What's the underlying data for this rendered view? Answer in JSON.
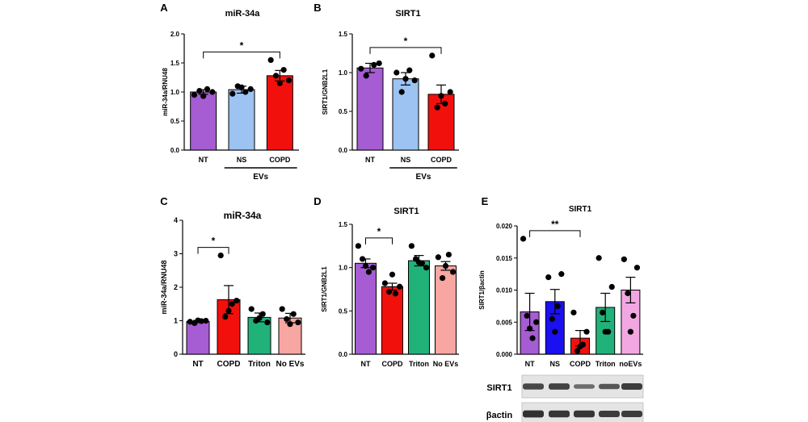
{
  "colors": {
    "purple": "#a65cd3",
    "blue": "#9cc3f2",
    "red": "#f2100d",
    "green": "#21b27a",
    "salmon": "#f7a6a2",
    "royal_blue": "#1a10f0",
    "pink": "#f2a7e2"
  },
  "chart_data": [
    {
      "panel_letter": "A",
      "type": "bar",
      "title": "miR-34a",
      "ylabel": "miR-34a/RNU48",
      "xlabel": "",
      "ylim": [
        0,
        2.0
      ],
      "yticks": [
        "0.0",
        "0.5",
        "1.0",
        "1.5",
        "2.0"
      ],
      "categories": [
        "NT",
        "NS",
        "COPD"
      ],
      "values": [
        1.0,
        1.04,
        1.28
      ],
      "sem": [
        0.04,
        0.06,
        0.09
      ],
      "bar_colors": [
        "purple",
        "blue",
        "red"
      ],
      "points": [
        [
          0.95,
          1.0,
          1.02,
          1.05,
          0.93
        ],
        [
          0.97,
          1.05,
          1.1,
          1.0,
          1.08
        ],
        [
          1.55,
          1.2,
          1.28,
          1.38,
          1.15
        ]
      ],
      "group_label": "EVs",
      "significance": [
        {
          "from": 0,
          "to": 2,
          "label": "*"
        }
      ]
    },
    {
      "panel_letter": "B",
      "type": "bar",
      "title": "SIRT1",
      "ylabel": "SIRT1/GNB2L1",
      "xlabel": "",
      "ylim": [
        0,
        1.5
      ],
      "yticks": [
        "0.0",
        "0.5",
        "1.0",
        "1.5"
      ],
      "categories": [
        "NT",
        "NS",
        "COPD"
      ],
      "values": [
        1.06,
        0.92,
        0.72
      ],
      "sem": [
        0.06,
        0.08,
        0.12
      ],
      "bar_colors": [
        "purple",
        "blue",
        "red"
      ],
      "points": [
        [
          1.05,
          1.12,
          0.96,
          1.1
        ],
        [
          1.0,
          0.9,
          0.75,
          1.03,
          0.92
        ],
        [
          1.22,
          0.75,
          0.55,
          0.6,
          0.7
        ]
      ],
      "group_label": "EVs",
      "significance": [
        {
          "from": 0,
          "to": 2,
          "label": "*"
        }
      ]
    },
    {
      "panel_letter": "C",
      "type": "bar",
      "title": "miR-34a",
      "ylabel": "miR-34a/RNU48",
      "xlabel": "",
      "ylim": [
        0,
        4
      ],
      "yticks": [
        "0",
        "1",
        "2",
        "3",
        "4"
      ],
      "categories": [
        "NT",
        "COPD",
        "Triton",
        "No EVs"
      ],
      "values": [
        0.98,
        1.63,
        1.1,
        1.08
      ],
      "sem": [
        0.03,
        0.42,
        0.13,
        0.14
      ],
      "bar_colors": [
        "purple",
        "red",
        "green",
        "salmon"
      ],
      "points": [
        [
          0.97,
          1.0,
          0.93,
          0.99,
          1.01
        ],
        [
          2.95,
          1.6,
          1.12,
          1.5,
          1.3
        ],
        [
          1.35,
          0.95,
          1.0,
          1.2,
          1.08
        ],
        [
          1.35,
          0.95,
          1.05,
          1.2,
          0.9
        ]
      ],
      "significance": [
        {
          "from": 0,
          "to": 1,
          "label": "*"
        }
      ]
    },
    {
      "panel_letter": "D",
      "type": "bar",
      "title": "SIRT1",
      "ylabel": "SIRT1/GNB2L1",
      "xlabel": "",
      "ylim": [
        0,
        1.5
      ],
      "yticks": [
        "0.0",
        "0.5",
        "1.0",
        "1.5"
      ],
      "categories": [
        "NT",
        "COPD",
        "Triton",
        "No EVs"
      ],
      "values": [
        1.05,
        0.78,
        1.08,
        1.02
      ],
      "sem": [
        0.05,
        0.04,
        0.06,
        0.05
      ],
      "bar_colors": [
        "purple",
        "red",
        "green",
        "salmon"
      ],
      "points": [
        [
          1.25,
          1.0,
          1.1,
          0.95,
          1.02
        ],
        [
          0.82,
          0.78,
          0.72,
          0.7,
          0.92
        ],
        [
          1.25,
          1.0,
          1.1,
          1.05,
          1.06
        ],
        [
          1.12,
          0.95,
          0.88,
          1.15,
          1.02
        ]
      ],
      "significance": [
        {
          "from": 0,
          "to": 1,
          "label": "*"
        }
      ]
    },
    {
      "panel_letter": "E",
      "type": "bar",
      "title": "SIRT1",
      "ylabel": "SIRT1/βactin",
      "xlabel": "",
      "ylim": [
        0,
        0.02
      ],
      "yticks": [
        "0.000",
        "0.005",
        "0.010",
        "0.015",
        "0.020"
      ],
      "categories": [
        "NT",
        "NS",
        "COPD",
        "Triton",
        "noEVs"
      ],
      "values": [
        0.0066,
        0.0082,
        0.0025,
        0.0073,
        0.01
      ],
      "sem": [
        0.0029,
        0.0019,
        0.0012,
        0.0022,
        0.002
      ],
      "bar_colors": [
        "purple",
        "royal_blue",
        "red",
        "green",
        "pink"
      ],
      "points": [
        [
          0.018,
          0.005,
          0.006,
          0.0025,
          0.004
        ],
        [
          0.012,
          0.0125,
          0.0055,
          0.0075,
          0.0035
        ],
        [
          0.0065,
          0.0035,
          0.0005,
          0.0015,
          0.0012
        ],
        [
          0.015,
          0.0105,
          0.0065,
          0.0035,
          0.0035
        ],
        [
          0.0148,
          0.0135,
          0.0095,
          0.006,
          0.0035
        ]
      ],
      "significance": [
        {
          "from": 0,
          "to": 2,
          "label": "**"
        }
      ]
    }
  ],
  "blot": {
    "labels": [
      "SIRT1",
      "βactin"
    ],
    "band_intensity": [
      [
        0.75,
        0.8,
        0.4,
        0.6,
        0.85
      ],
      [
        0.95,
        0.9,
        0.9,
        0.85,
        0.85
      ]
    ]
  }
}
